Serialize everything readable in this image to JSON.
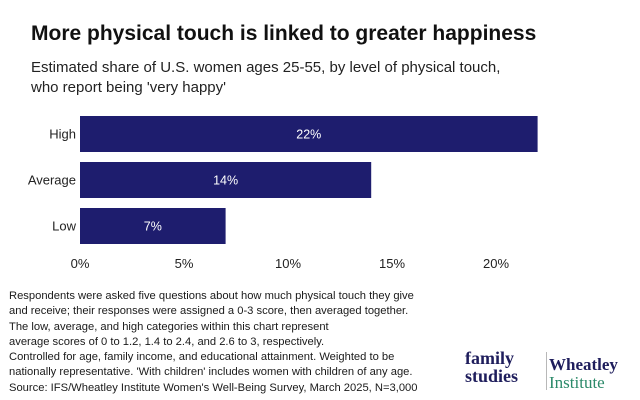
{
  "title": "More physical touch is linked to greater happiness",
  "subtitle": "Estimated share of U.S. women ages 25-55, by level of physical touch, who report being 'very happy'",
  "chart_data": {
    "type": "bar",
    "orientation": "horizontal",
    "categories": [
      "High",
      "Average",
      "Low"
    ],
    "values": [
      22,
      14,
      7
    ],
    "value_labels": [
      "22%",
      "14%",
      "7%"
    ],
    "xlim": [
      0,
      22
    ],
    "xticks": [
      0,
      5,
      10,
      15,
      20
    ],
    "xtick_labels": [
      "0%",
      "5%",
      "10%",
      "15%",
      "20%"
    ],
    "grid": false,
    "bar_color": "#1e1d6e"
  },
  "notes": [
    "Respondents were asked five questions about how much physical touch they give",
    "and receive; their responses were assigned a 0-3 score, then averaged together.",
    "The low, average, and high categories within this chart represent",
    "average scores of 0 to 1.2, 1.4 to 2.4, and 2.6 to 3, respectively.",
    "Controlled for age, family income, and educational attainment. Weighted to be",
    "nationally representative. 'With children' includes women with children of any age.",
    "Source: IFS/Wheatley Institute Women's Well-Being Survey, March 2025, N=3,000"
  ],
  "logos": {
    "family_studies": [
      "family",
      "studies"
    ],
    "wheatley": [
      "Wheatley",
      "Institute"
    ],
    "colors": {
      "navy": "#1e1d5c",
      "green": "#2c8a6a"
    }
  }
}
